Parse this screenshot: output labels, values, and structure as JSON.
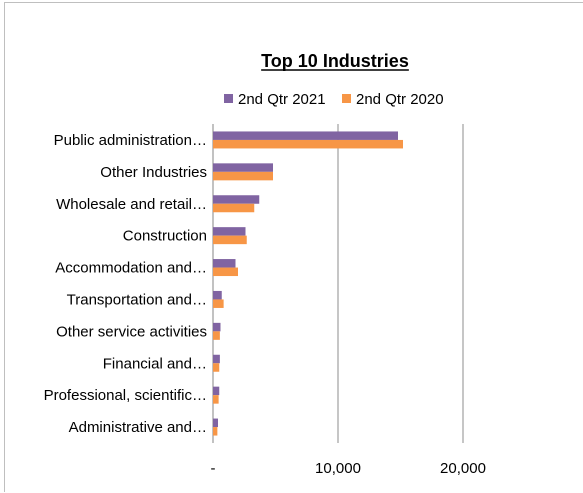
{
  "chart_data": {
    "type": "bar",
    "orientation": "horizontal",
    "title": "Top 10 Industries",
    "xlabel": "",
    "ylabel": "",
    "categories": [
      "Public administration…",
      "Other Industries",
      "Wholesale and retail…",
      "Construction",
      "Accommodation and…",
      "Transportation and…",
      "Other service activities",
      "Financial and…",
      "Professional, scientific…",
      "Administrative and…"
    ],
    "series": [
      {
        "name": "2nd Qtr 2021",
        "color": "#8064a2",
        "values": [
          14800,
          4800,
          3700,
          2600,
          1800,
          700,
          600,
          550,
          500,
          400
        ]
      },
      {
        "name": "2nd Qtr 2020",
        "color": "#f79646",
        "values": [
          15200,
          4800,
          3300,
          2700,
          2000,
          850,
          550,
          500,
          450,
          350
        ]
      }
    ],
    "xlim": [
      0,
      20000
    ],
    "xticks": [
      0,
      10000,
      20000
    ],
    "xtick_labels": [
      "-",
      "10,000",
      "20,000"
    ],
    "grid": true,
    "legend_position": "top"
  }
}
